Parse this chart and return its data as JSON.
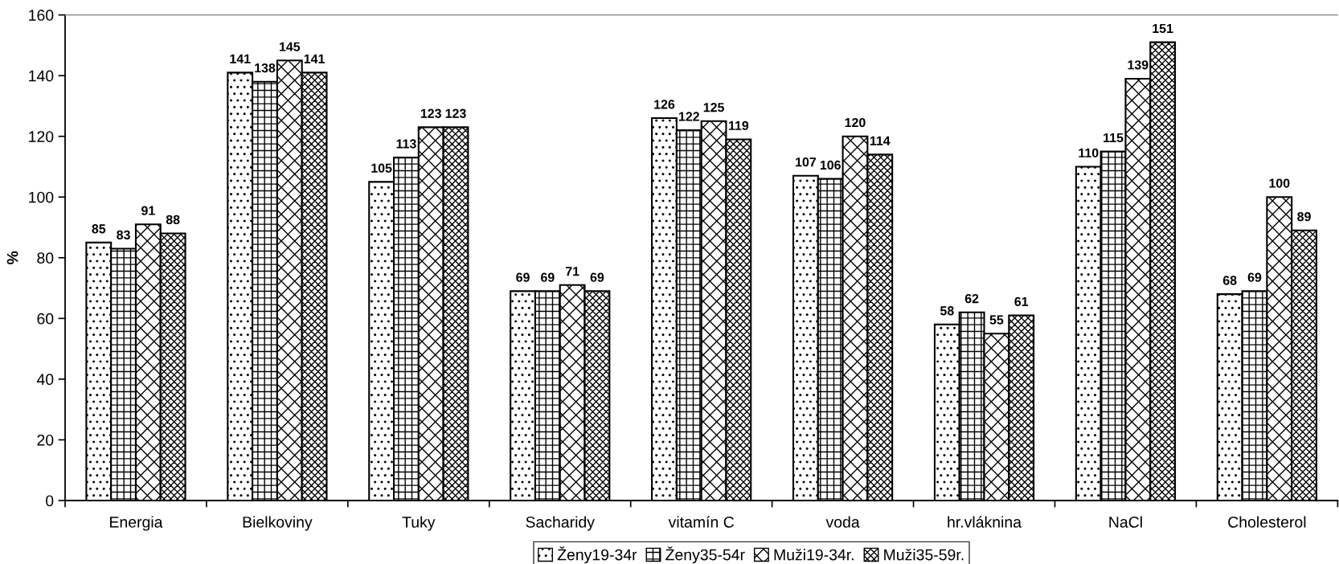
{
  "chart_data": {
    "type": "bar",
    "ylabel": "%",
    "categories": [
      "Energia",
      "Bielkoviny",
      "Tuky",
      "Sacharidy",
      "vitamín C",
      "voda",
      "hr.vláknina",
      "NaCl",
      "Cholesterol"
    ],
    "series": [
      {
        "name": "Ženy19-34r",
        "color": "#000000",
        "values": [
          85,
          141,
          105,
          69,
          126,
          107,
          58,
          110,
          68
        ]
      },
      {
        "name": "Ženy35-54r",
        "color": "#000000",
        "values": [
          83,
          138,
          113,
          69,
          122,
          106,
          62,
          115,
          69
        ]
      },
      {
        "name": "Muži19-34r.",
        "color": "#000000",
        "values": [
          91,
          145,
          123,
          71,
          125,
          120,
          55,
          139,
          100
        ]
      },
      {
        "name": "Muži35-59r.",
        "color": "#000000",
        "values": [
          88,
          141,
          123,
          69,
          119,
          114,
          61,
          151,
          89
        ]
      }
    ],
    "ylim": [
      0,
      160
    ],
    "yticks": [
      0,
      20,
      40,
      60,
      80,
      100,
      120,
      140,
      160
    ],
    "data_labels": true,
    "grid": false,
    "legend": "bottom"
  }
}
